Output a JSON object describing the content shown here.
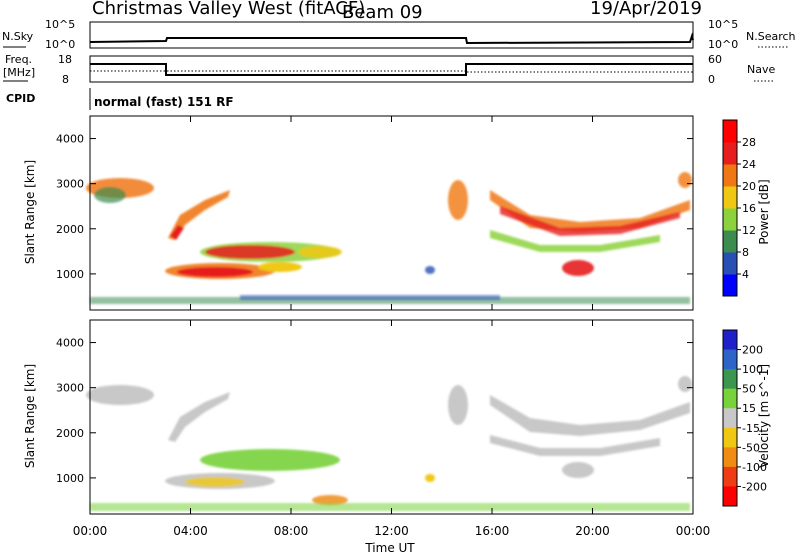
{
  "header": {
    "station": "Christmas Valley West (fitACF)",
    "beam": "Beam 09",
    "date": "19/Apr/2019"
  },
  "info_panels": {
    "noise_label": "N.Sky",
    "noise_right_label": "N.Search",
    "noise_ticks_left": [
      "10^5",
      "10^0"
    ],
    "noise_ticks_right": [
      "10^5",
      "10^0"
    ],
    "freq_label_top": "Freq.",
    "freq_label_units": "[MHz]",
    "freq_ticks": [
      "18",
      "8"
    ],
    "nave_label": "Nave",
    "nave_ticks": [
      "60",
      "0"
    ],
    "cpid_label": "CPID",
    "cpid_text": "normal (fast) 151 RF"
  },
  "chart_data": [
    {
      "type": "heatmap",
      "title": "",
      "ylabel": "Slant Range [km]",
      "xlabel": "",
      "ylim": [
        200,
        4500
      ],
      "yticks": [
        1000,
        2000,
        3000,
        4000
      ],
      "colorbar": {
        "label": "Power [dB]",
        "ticks": [
          "4",
          "8",
          "12",
          "16",
          "20",
          "24",
          "28"
        ],
        "colors": [
          "#0000ff",
          "#2850b4",
          "#3c8c50",
          "#8cd23c",
          "#f0c814",
          "#f07814",
          "#e61e1e",
          "#ff0000"
        ]
      }
    },
    {
      "type": "heatmap",
      "title": "",
      "ylabel": "Slant Range [km]",
      "xlabel": "Time UT",
      "ylim": [
        200,
        4500
      ],
      "yticks": [
        1000,
        2000,
        3000,
        4000
      ],
      "xticks": [
        "00:00",
        "04:00",
        "08:00",
        "12:00",
        "16:00",
        "20:00",
        "00:00"
      ],
      "colorbar": {
        "label": "Velocity [m s^-1]",
        "ticks": [
          "200",
          "100",
          "50",
          "15",
          "-15",
          "-50",
          "-100",
          "-200"
        ],
        "colors": [
          "#2020c8",
          "#2c64c8",
          "#3c9650",
          "#78d23c",
          "#c8c8c8",
          "#f0c814",
          "#f08c14",
          "#f03c14",
          "#ff0000"
        ]
      }
    }
  ]
}
